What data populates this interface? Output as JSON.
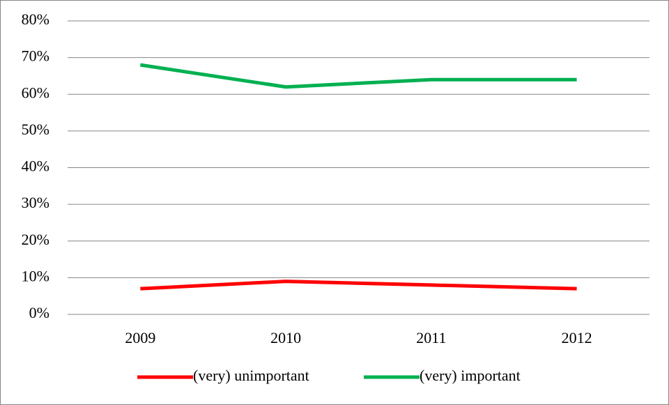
{
  "chart_data": {
    "type": "line",
    "categories": [
      "2009",
      "2010",
      "2011",
      "2012"
    ],
    "series": [
      {
        "name": "(very) unimportant",
        "color": "#ff0000",
        "values": [
          7,
          9,
          8,
          7
        ]
      },
      {
        "name": "(very) important",
        "color": "#00b050",
        "values": [
          68,
          62,
          64,
          64
        ]
      }
    ],
    "ylim": [
      0,
      80
    ],
    "yticks": [
      {
        "value": 0,
        "label": "0%"
      },
      {
        "value": 10,
        "label": "10%"
      },
      {
        "value": 20,
        "label": "20%"
      },
      {
        "value": 30,
        "label": "30%"
      },
      {
        "value": 40,
        "label": "40%"
      },
      {
        "value": 50,
        "label": "50%"
      },
      {
        "value": 60,
        "label": "60%"
      },
      {
        "value": 70,
        "label": "70%"
      },
      {
        "value": 80,
        "label": "80%"
      }
    ],
    "grid": true,
    "legend": "bottom"
  }
}
